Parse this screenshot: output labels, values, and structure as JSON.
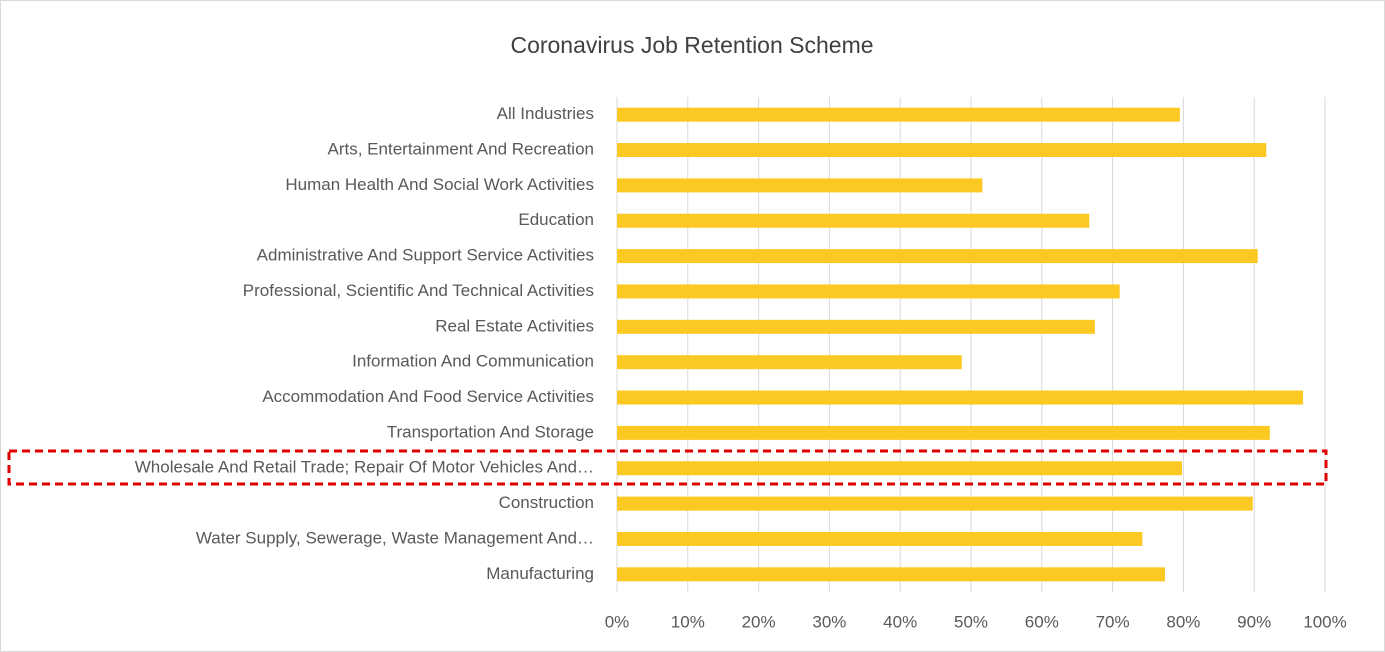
{
  "chart_data": {
    "type": "bar",
    "orientation": "horizontal",
    "title": "Coronavirus Job Retention Scheme",
    "categories": [
      "All Industries",
      "Arts, Entertainment And Recreation",
      "Human Health And Social Work Activities",
      "Education",
      "Administrative And Support Service Activities",
      "Professional, Scientific And Technical Activities",
      "Real Estate Activities",
      "Information And Communication",
      "Accommodation And Food Service Activities",
      "Transportation And Storage",
      "Wholesale And Retail Trade; Repair Of Motor Vehicles And…",
      "Construction",
      "Water Supply, Sewerage, Waste Management And…",
      "Manufacturing"
    ],
    "values": [
      79.5,
      91.7,
      51.6,
      66.7,
      90.5,
      71.0,
      67.5,
      48.7,
      96.9,
      92.2,
      79.8,
      89.8,
      74.2,
      77.4
    ],
    "color": "#fcc923",
    "xlim": [
      0,
      100
    ],
    "xticks": [
      {
        "value": 0,
        "label": "0%"
      },
      {
        "value": 10,
        "label": "10%"
      },
      {
        "value": 20,
        "label": "20%"
      },
      {
        "value": 30,
        "label": "30%"
      },
      {
        "value": 40,
        "label": "40%"
      },
      {
        "value": 50,
        "label": "50%"
      },
      {
        "value": 60,
        "label": "60%"
      },
      {
        "value": 70,
        "label": "70%"
      },
      {
        "value": 80,
        "label": "80%"
      },
      {
        "value": 90,
        "label": "90%"
      },
      {
        "value": 100,
        "label": "100%"
      }
    ],
    "grid": true
  }
}
